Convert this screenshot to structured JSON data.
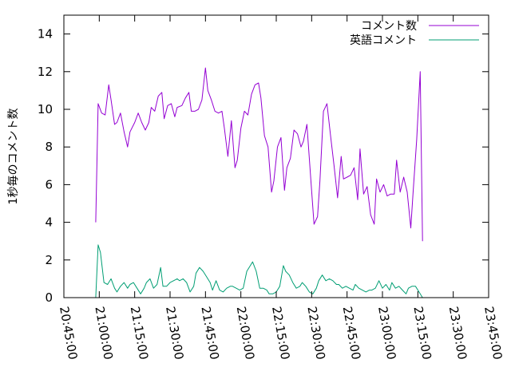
{
  "chart_data": {
    "type": "line",
    "ylabel": "1秒毎のコメント数",
    "xlabel": "",
    "ylim": [
      0,
      15
    ],
    "yticks": [
      0,
      2,
      4,
      6,
      8,
      10,
      12,
      14
    ],
    "xlim": [
      "20:45:00",
      "23:45:00"
    ],
    "xticks": [
      "20:45:00",
      "21:00:00",
      "21:15:00",
      "21:30:00",
      "21:45:00",
      "22:00:00",
      "22:15:00",
      "22:30:00",
      "22:45:00",
      "23:00:00",
      "23:15:00",
      "23:30:00",
      "23:45:00"
    ],
    "grid": false,
    "legend_position": "top-right",
    "series": [
      {
        "name": "コメント数",
        "color": "#9400d3",
        "points": [
          [
            "20:58:30",
            4.0
          ],
          [
            "20:59:30",
            10.3
          ],
          [
            "21:01:00",
            9.8
          ],
          [
            "21:02:30",
            9.7
          ],
          [
            "21:04:00",
            11.3
          ],
          [
            "21:05:00",
            10.5
          ],
          [
            "21:06:30",
            9.2
          ],
          [
            "21:07:30",
            9.3
          ],
          [
            "21:09:00",
            9.8
          ],
          [
            "21:10:30",
            8.8
          ],
          [
            "21:12:00",
            8.0
          ],
          [
            "21:13:00",
            8.8
          ],
          [
            "21:15:00",
            9.3
          ],
          [
            "21:16:30",
            9.8
          ],
          [
            "21:18:00",
            9.3
          ],
          [
            "21:19:30",
            8.9
          ],
          [
            "21:21:00",
            9.3
          ],
          [
            "21:22:00",
            10.1
          ],
          [
            "21:23:30",
            9.9
          ],
          [
            "21:25:00",
            10.7
          ],
          [
            "21:26:30",
            10.9
          ],
          [
            "21:27:30",
            9.5
          ],
          [
            "21:29:00",
            10.2
          ],
          [
            "21:30:30",
            10.3
          ],
          [
            "21:32:00",
            9.6
          ],
          [
            "21:33:00",
            10.1
          ],
          [
            "21:35:00",
            10.2
          ],
          [
            "21:36:30",
            10.6
          ],
          [
            "21:38:00",
            10.9
          ],
          [
            "21:39:00",
            9.9
          ],
          [
            "21:40:30",
            9.9
          ],
          [
            "21:42:00",
            10.0
          ],
          [
            "21:43:30",
            10.5
          ],
          [
            "21:45:00",
            12.2
          ],
          [
            "21:46:00",
            11.0
          ],
          [
            "21:47:30",
            10.5
          ],
          [
            "21:49:00",
            9.9
          ],
          [
            "21:50:30",
            9.8
          ],
          [
            "21:52:00",
            9.9
          ],
          [
            "21:53:00",
            9.0
          ],
          [
            "21:54:30",
            7.5
          ],
          [
            "21:56:00",
            9.4
          ],
          [
            "21:57:30",
            6.9
          ],
          [
            "21:58:30",
            7.3
          ],
          [
            "22:00:00",
            9.0
          ],
          [
            "22:01:30",
            9.9
          ],
          [
            "22:03:00",
            9.7
          ],
          [
            "22:04:30",
            10.8
          ],
          [
            "22:06:00",
            11.3
          ],
          [
            "22:07:30",
            11.4
          ],
          [
            "22:08:30",
            10.6
          ],
          [
            "22:10:00",
            8.6
          ],
          [
            "22:11:30",
            8.0
          ],
          [
            "22:13:00",
            5.6
          ],
          [
            "22:14:00",
            6.2
          ],
          [
            "22:15:30",
            8.0
          ],
          [
            "22:17:00",
            8.5
          ],
          [
            "22:18:30",
            5.7
          ],
          [
            "22:19:30",
            6.9
          ],
          [
            "22:21:00",
            7.4
          ],
          [
            "22:22:30",
            8.9
          ],
          [
            "22:24:00",
            8.7
          ],
          [
            "22:25:30",
            8.0
          ],
          [
            "22:26:30",
            8.3
          ],
          [
            "22:28:00",
            9.2
          ],
          [
            "22:29:30",
            6.5
          ],
          [
            "22:31:00",
            3.9
          ],
          [
            "22:32:30",
            4.3
          ],
          [
            "22:33:30",
            6.2
          ],
          [
            "22:35:00",
            9.9
          ],
          [
            "22:36:30",
            10.3
          ],
          [
            "22:38:00",
            8.6
          ],
          [
            "22:39:30",
            7.0
          ],
          [
            "22:41:00",
            5.3
          ],
          [
            "22:42:30",
            7.5
          ],
          [
            "22:43:30",
            6.3
          ],
          [
            "22:45:00",
            6.4
          ],
          [
            "22:46:30",
            6.5
          ],
          [
            "22:48:00",
            6.9
          ],
          [
            "22:49:30",
            5.2
          ],
          [
            "22:50:30",
            7.9
          ],
          [
            "22:52:00",
            5.5
          ],
          [
            "22:53:30",
            5.9
          ],
          [
            "22:55:00",
            4.4
          ],
          [
            "22:56:30",
            3.9
          ],
          [
            "22:57:30",
            6.3
          ],
          [
            "22:59:00",
            5.6
          ],
          [
            "23:00:30",
            6.0
          ],
          [
            "23:02:00",
            5.4
          ],
          [
            "23:03:30",
            5.5
          ],
          [
            "23:05:00",
            5.5
          ],
          [
            "23:06:00",
            7.3
          ],
          [
            "23:07:30",
            5.6
          ],
          [
            "23:09:00",
            6.4
          ],
          [
            "23:10:30",
            5.6
          ],
          [
            "23:12:00",
            3.7
          ],
          [
            "23:13:00",
            5.6
          ],
          [
            "23:14:30",
            8.4
          ],
          [
            "23:16:00",
            12.0
          ],
          [
            "23:17:00",
            3.0
          ]
        ]
      },
      {
        "name": "英語コメント",
        "color": "#009e73",
        "points": [
          [
            "20:58:30",
            0.0
          ],
          [
            "20:59:30",
            2.8
          ],
          [
            "21:00:30",
            2.4
          ],
          [
            "21:02:00",
            0.8
          ],
          [
            "21:03:30",
            0.7
          ],
          [
            "21:05:00",
            1.0
          ],
          [
            "21:06:30",
            0.5
          ],
          [
            "21:07:30",
            0.3
          ],
          [
            "21:09:00",
            0.6
          ],
          [
            "21:10:30",
            0.8
          ],
          [
            "21:12:00",
            0.5
          ],
          [
            "21:13:00",
            0.7
          ],
          [
            "21:14:30",
            0.8
          ],
          [
            "21:16:00",
            0.5
          ],
          [
            "21:17:30",
            0.2
          ],
          [
            "21:19:00",
            0.5
          ],
          [
            "21:20:00",
            0.8
          ],
          [
            "21:21:30",
            1.0
          ],
          [
            "21:23:00",
            0.5
          ],
          [
            "21:24:30",
            0.7
          ],
          [
            "21:26:00",
            1.6
          ],
          [
            "21:27:00",
            0.6
          ],
          [
            "21:28:30",
            0.6
          ],
          [
            "21:30:00",
            0.8
          ],
          [
            "21:31:30",
            0.9
          ],
          [
            "21:33:00",
            1.0
          ],
          [
            "21:34:00",
            0.9
          ],
          [
            "21:35:30",
            1.0
          ],
          [
            "21:37:00",
            0.8
          ],
          [
            "21:38:30",
            0.3
          ],
          [
            "21:40:00",
            0.6
          ],
          [
            "21:41:00",
            1.3
          ],
          [
            "21:42:30",
            1.6
          ],
          [
            "21:44:00",
            1.4
          ],
          [
            "21:45:30",
            1.1
          ],
          [
            "21:47:00",
            0.8
          ],
          [
            "21:48:00",
            0.4
          ],
          [
            "21:49:30",
            0.9
          ],
          [
            "21:51:00",
            0.4
          ],
          [
            "21:52:30",
            0.3
          ],
          [
            "21:54:00",
            0.5
          ],
          [
            "21:55:30",
            0.6
          ],
          [
            "21:56:30",
            0.6
          ],
          [
            "21:58:00",
            0.5
          ],
          [
            "21:59:30",
            0.4
          ],
          [
            "22:01:00",
            0.5
          ],
          [
            "22:02:30",
            1.4
          ],
          [
            "22:04:00",
            1.7
          ],
          [
            "22:05:00",
            1.9
          ],
          [
            "22:06:30",
            1.4
          ],
          [
            "22:08:00",
            0.5
          ],
          [
            "22:09:30",
            0.5
          ],
          [
            "22:11:00",
            0.4
          ],
          [
            "22:12:00",
            0.2
          ],
          [
            "22:13:30",
            0.2
          ],
          [
            "22:15:00",
            0.3
          ],
          [
            "22:16:30",
            0.6
          ],
          [
            "22:18:00",
            1.7
          ],
          [
            "22:19:00",
            1.4
          ],
          [
            "22:20:30",
            1.2
          ],
          [
            "22:22:00",
            0.8
          ],
          [
            "22:23:30",
            0.5
          ],
          [
            "22:25:00",
            0.6
          ],
          [
            "22:26:00",
            0.8
          ],
          [
            "22:27:30",
            0.6
          ],
          [
            "22:29:00",
            0.3
          ],
          [
            "22:30:30",
            0.2
          ],
          [
            "22:32:00",
            0.5
          ],
          [
            "22:33:00",
            0.9
          ],
          [
            "22:34:30",
            1.2
          ],
          [
            "22:36:00",
            0.9
          ],
          [
            "22:37:30",
            1.0
          ],
          [
            "22:39:00",
            0.9
          ],
          [
            "22:40:30",
            0.7
          ],
          [
            "22:41:30",
            0.7
          ],
          [
            "22:43:00",
            0.5
          ],
          [
            "22:44:30",
            0.6
          ],
          [
            "22:46:00",
            0.5
          ],
          [
            "22:47:30",
            0.4
          ],
          [
            "22:48:30",
            0.7
          ],
          [
            "22:50:00",
            0.5
          ],
          [
            "22:51:30",
            0.4
          ],
          [
            "22:53:00",
            0.3
          ],
          [
            "22:54:30",
            0.4
          ],
          [
            "22:55:30",
            0.4
          ],
          [
            "22:57:00",
            0.5
          ],
          [
            "22:58:30",
            0.9
          ],
          [
            "23:00:00",
            0.5
          ],
          [
            "23:01:30",
            0.7
          ],
          [
            "23:03:00",
            0.4
          ],
          [
            "23:04:00",
            0.8
          ],
          [
            "23:05:30",
            0.5
          ],
          [
            "23:07:00",
            0.6
          ],
          [
            "23:08:30",
            0.4
          ],
          [
            "23:10:00",
            0.2
          ],
          [
            "23:11:00",
            0.5
          ],
          [
            "23:12:30",
            0.6
          ],
          [
            "23:14:00",
            0.6
          ],
          [
            "23:15:30",
            0.3
          ],
          [
            "23:17:00",
            0.0
          ]
        ]
      }
    ]
  }
}
